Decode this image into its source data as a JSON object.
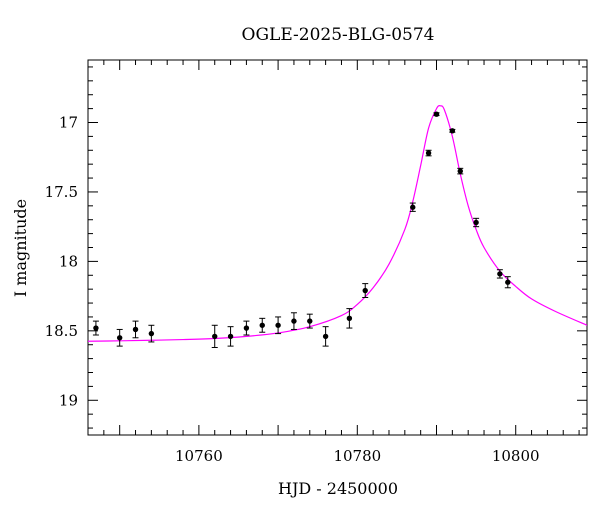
{
  "chart_data": {
    "type": "scatter",
    "title": "OGLE-2025-BLG-0574",
    "xlabel": "HJD - 2450000",
    "ylabel": "I magnitude",
    "xlim": [
      10746,
      10809
    ],
    "ylim": [
      19.25,
      16.55
    ],
    "y_inverted": true,
    "grid": false,
    "x_ticks": [
      10760,
      10780,
      10800
    ],
    "y_ticks": [
      17,
      17.5,
      18,
      18.5,
      19
    ],
    "x_tick_labels": [
      "10760",
      "10780",
      "10800"
    ],
    "y_tick_labels": [
      "17",
      "17.5",
      "18",
      "18.5",
      "19"
    ],
    "points": [
      {
        "x": 10747.0,
        "y": 18.48,
        "err": 0.05
      },
      {
        "x": 10750.0,
        "y": 18.55,
        "err": 0.06
      },
      {
        "x": 10752.0,
        "y": 18.49,
        "err": 0.06
      },
      {
        "x": 10754.0,
        "y": 18.52,
        "err": 0.06
      },
      {
        "x": 10762.0,
        "y": 18.54,
        "err": 0.08
      },
      {
        "x": 10764.0,
        "y": 18.54,
        "err": 0.07
      },
      {
        "x": 10766.0,
        "y": 18.48,
        "err": 0.05
      },
      {
        "x": 10768.0,
        "y": 18.46,
        "err": 0.05
      },
      {
        "x": 10770.0,
        "y": 18.46,
        "err": 0.06
      },
      {
        "x": 10772.0,
        "y": 18.43,
        "err": 0.06
      },
      {
        "x": 10774.0,
        "y": 18.43,
        "err": 0.05
      },
      {
        "x": 10776.0,
        "y": 18.54,
        "err": 0.07
      },
      {
        "x": 10779.0,
        "y": 18.41,
        "err": 0.07
      },
      {
        "x": 10781.0,
        "y": 18.21,
        "err": 0.05
      },
      {
        "x": 10787.0,
        "y": 17.61,
        "err": 0.03
      },
      {
        "x": 10789.0,
        "y": 17.22,
        "err": 0.02
      },
      {
        "x": 10790.0,
        "y": 16.94,
        "err": 0.01
      },
      {
        "x": 10792.0,
        "y": 17.06,
        "err": 0.01
      },
      {
        "x": 10793.0,
        "y": 17.35,
        "err": 0.02
      },
      {
        "x": 10795.0,
        "y": 17.72,
        "err": 0.03
      },
      {
        "x": 10798.0,
        "y": 18.09,
        "err": 0.03
      },
      {
        "x": 10799.0,
        "y": 18.15,
        "err": 0.04
      }
    ],
    "model": {
      "type": "line",
      "color": "#ff00ff",
      "x": [
        10746,
        10750,
        10754,
        10758,
        10762,
        10766,
        10770,
        10774,
        10778,
        10780,
        10782,
        10784,
        10786,
        10787,
        10788,
        10789,
        10790,
        10790.5,
        10791,
        10792,
        10793,
        10794,
        10795,
        10796,
        10798,
        10800,
        10802,
        10805,
        10809
      ],
      "y": [
        18.575,
        18.572,
        18.568,
        18.563,
        18.555,
        18.54,
        18.515,
        18.47,
        18.39,
        18.31,
        18.19,
        18.02,
        17.77,
        17.57,
        17.31,
        17.04,
        16.9,
        16.88,
        16.91,
        17.1,
        17.37,
        17.6,
        17.77,
        17.9,
        18.07,
        18.18,
        18.27,
        18.36,
        18.46
      ]
    },
    "marker_color": "#000000"
  }
}
